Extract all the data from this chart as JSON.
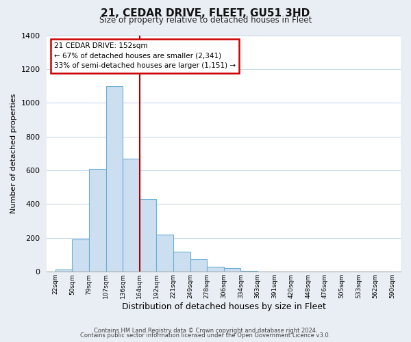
{
  "title": "21, CEDAR DRIVE, FLEET, GU51 3HD",
  "subtitle": "Size of property relative to detached houses in Fleet",
  "xlabel": "Distribution of detached houses by size in Fleet",
  "ylabel": "Number of detached properties",
  "bar_values": [
    15,
    190,
    610,
    1100,
    670,
    430,
    220,
    120,
    75,
    30,
    20,
    5,
    0,
    0,
    0,
    0,
    0,
    0,
    0,
    0
  ],
  "bin_labels": [
    "22sqm",
    "50sqm",
    "79sqm",
    "107sqm",
    "136sqm",
    "164sqm",
    "192sqm",
    "221sqm",
    "249sqm",
    "278sqm",
    "306sqm",
    "334sqm",
    "363sqm",
    "391sqm",
    "420sqm",
    "448sqm",
    "476sqm",
    "505sqm",
    "533sqm",
    "562sqm",
    "590sqm"
  ],
  "bar_color": "#ccdff0",
  "bar_edge_color": "#6baed6",
  "vline_x_index": 4,
  "annotation_title": "21 CEDAR DRIVE: 152sqm",
  "annotation_line1": "← 67% of detached houses are smaller (2,341)",
  "annotation_line2": "33% of semi-detached houses are larger (1,151) →",
  "annotation_box_color": "#ffffff",
  "annotation_box_edge": "#cc0000",
  "vline_color": "#aa0000",
  "ylim": [
    0,
    1400
  ],
  "yticks": [
    0,
    200,
    400,
    600,
    800,
    1000,
    1200,
    1400
  ],
  "footer1": "Contains HM Land Registry data © Crown copyright and database right 2024.",
  "footer2": "Contains public sector information licensed under the Open Government Licence v3.0.",
  "background_color": "#e8eef4",
  "plot_background": "#ffffff",
  "grid_color": "#c8d8e8"
}
